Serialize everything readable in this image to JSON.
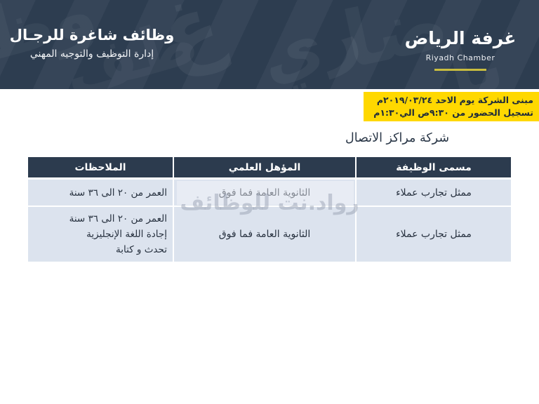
{
  "header": {
    "title": "وظائف شاغرة للرجـال",
    "subtitle": "إدارة التوظيف والتوجيه المهني",
    "logo_arabic": "غرفة الرياض",
    "logo_english": "Riyadh Chamber"
  },
  "notice": {
    "line1": "مبنى الشركة يوم الاحد ٢٠١٩/٠٣/٢٤م",
    "line2": "تسجيل الحضور من ٩:٣٠ص الي١:٣٠م"
  },
  "company_title": "شركة مراكز الاتصال",
  "table": {
    "headers": [
      "مسمى الوظيفة",
      "المؤهل العلمي",
      "الملاحظات"
    ],
    "rows": [
      {
        "job_title": "ممثل تجارب عملاء",
        "qualification": "الثانوية العامة فما فوق",
        "notes": [
          "العمر من ٢٠ الى ٣٦ سنة"
        ]
      },
      {
        "job_title": "ممثل تجارب عملاء",
        "qualification": "الثانوية العامة فما فوق",
        "notes": [
          "العمر من ٢٠ الى ٣٦ سنة",
          "إجادة اللغة الإنجليزية",
          "تحدث و كتابة"
        ]
      }
    ]
  },
  "watermark": "رواد.نت للوظائف",
  "pattern_glyphs": {
    "g1": "غ",
    "g2": "ري",
    "g3": "ضا",
    "g4": "ظف",
    "g5": "يا",
    "g6": "وظ"
  },
  "colors": {
    "band_navy": "#2f3f53",
    "table_header_navy": "#2c3b4e",
    "row_bg": "#dce3ee",
    "notice_yellow": "#ffd800",
    "logo_underline": "#c9bd3f",
    "text_dark": "#27313f"
  }
}
